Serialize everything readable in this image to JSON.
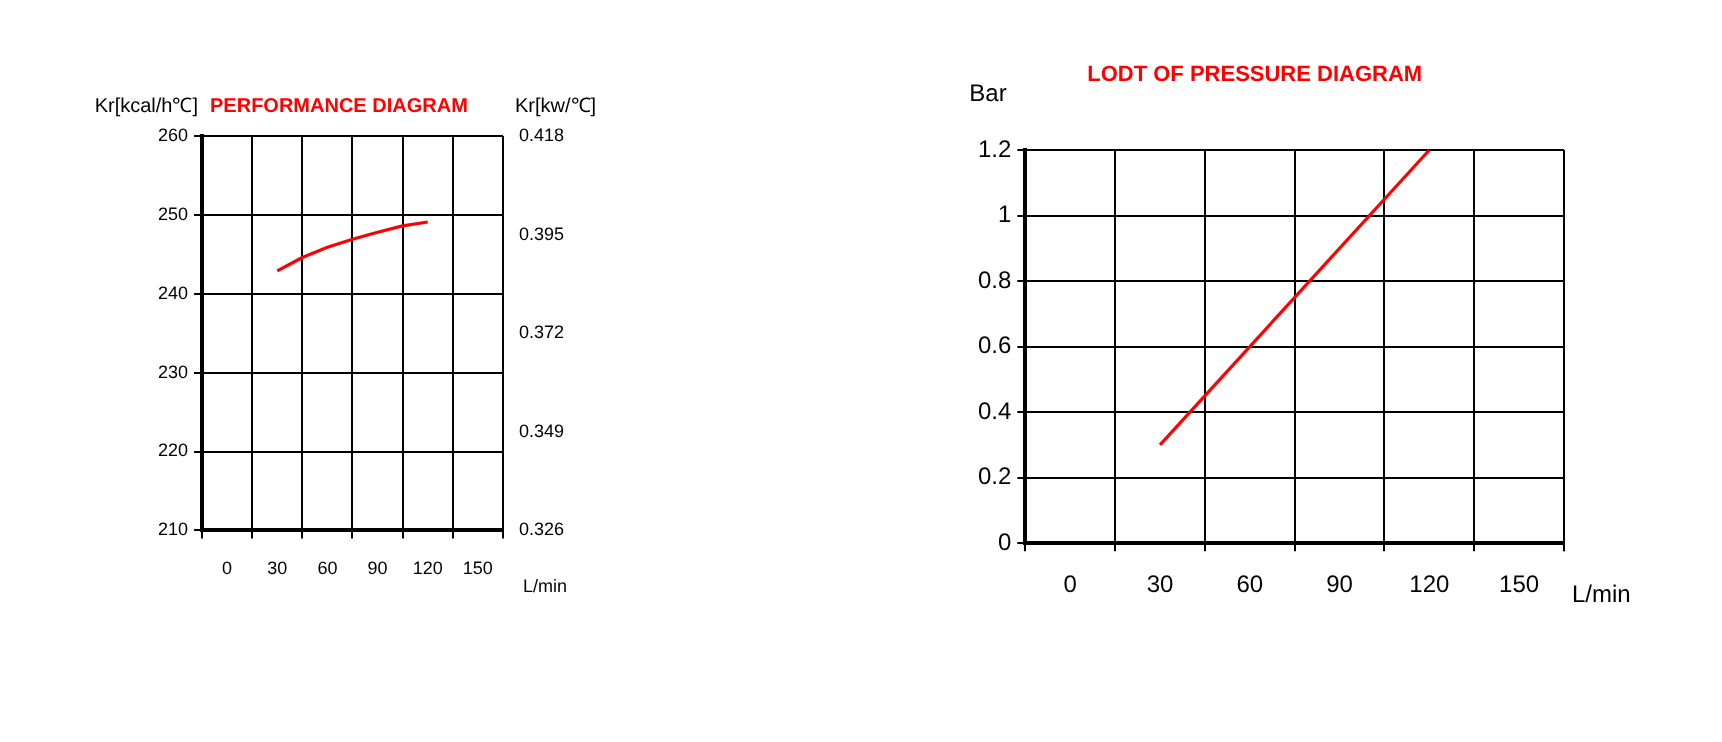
{
  "chart_data": [
    {
      "type": "line",
      "title": "PERFORMANCE DIAGRAM",
      "ylabel": "Kr[kcal/h℃]",
      "y2label": "Kr[kw/℃]",
      "xlabel": "L/min",
      "grid": true,
      "legend": false,
      "marker": "none",
      "line_style": "solid",
      "xlim": [
        -15,
        165
      ],
      "xticks": [
        {
          "value": -15,
          "label": null
        },
        0,
        {
          "value": 15,
          "label": null
        },
        30,
        {
          "value": 45,
          "label": null
        },
        60,
        {
          "value": 75,
          "label": null
        },
        90,
        {
          "value": 105,
          "label": null
        },
        120,
        {
          "value": 135,
          "label": null
        },
        150,
        {
          "value": 165,
          "label": null
        }
      ],
      "ylim": [
        210,
        260
      ],
      "yticks": [
        210,
        220,
        230,
        240,
        250,
        260
      ],
      "y2lim": [
        0.326,
        0.418
      ],
      "y2ticks": [
        0.326,
        0.349,
        0.372,
        0.395,
        0.418
      ],
      "series": [
        {
          "color": "#ff0000",
          "x": [
            30,
            45,
            60,
            75,
            90,
            105,
            120
          ],
          "values": [
            242.9,
            244.6,
            245.9,
            246.9,
            247.8,
            248.6,
            249.1
          ]
        }
      ]
    },
    {
      "type": "line",
      "title": "LODT OF PRESSURE DIAGRAM",
      "ylabel": "Bar",
      "xlabel": "L/min",
      "grid": true,
      "legend": false,
      "marker": "none",
      "line_style": "solid",
      "xlim": [
        -15,
        165
      ],
      "xticks": [
        {
          "value": -15,
          "label": null
        },
        0,
        {
          "value": 15,
          "label": null
        },
        30,
        {
          "value": 45,
          "label": null
        },
        60,
        {
          "value": 75,
          "label": null
        },
        90,
        {
          "value": 105,
          "label": null
        },
        120,
        {
          "value": 135,
          "label": null
        },
        150,
        {
          "value": 165,
          "label": null
        }
      ],
      "ylim": [
        0,
        1.2
      ],
      "yticks": [
        0,
        0.2,
        0.4,
        0.6,
        0.8,
        1,
        1.2
      ],
      "series": [
        {
          "color": "#ff0000",
          "x": [
            30,
            120
          ],
          "values": [
            0.3,
            1.2
          ]
        }
      ]
    }
  ]
}
